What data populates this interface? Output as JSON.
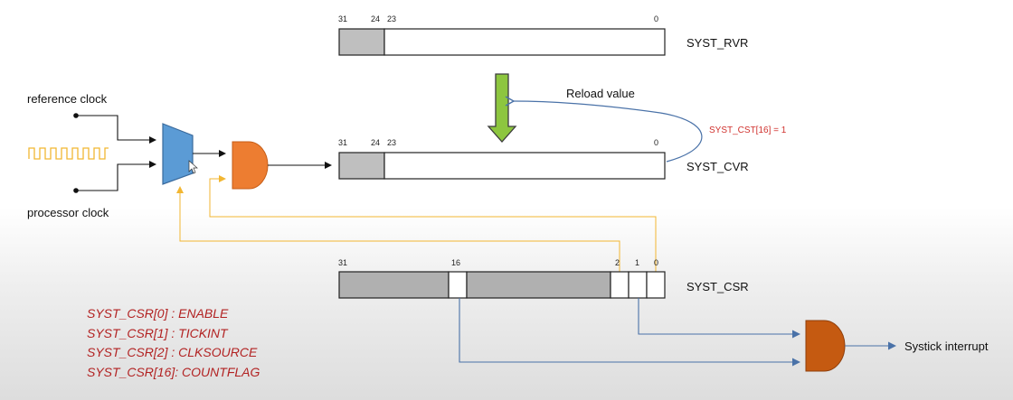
{
  "registers": {
    "rvr": {
      "name": "SYST_RVR",
      "bit_31": "31",
      "bit_24": "24",
      "bit_23": "23",
      "bit_0": "0"
    },
    "cvr": {
      "name": "SYST_CVR",
      "bit_31": "31",
      "bit_24": "24",
      "bit_23": "23",
      "bit_0": "0"
    },
    "csr": {
      "name": "SYST_CSR",
      "bit_31": "31",
      "bit_16": "16",
      "bit_2": "2",
      "bit_1": "1",
      "bit_0": "0"
    }
  },
  "inputs": {
    "reference_clock": "reference clock",
    "processor_clock": "processor clock"
  },
  "labels": {
    "reload_value": "Reload value",
    "countflag_condition": "SYST_CST[16] = 1",
    "systick_interrupt": "Systick interrupt"
  },
  "legend": [
    "SYST_CSR[0] : ENABLE",
    "SYST_CSR[1] : TICKINT",
    "SYST_CSR[2] : CLKSOURCE",
    "SYST_CSR[16]: COUNTFLAG"
  ],
  "colors": {
    "mux": "#5b9bd5",
    "and_gate_clock": "#ed7d31",
    "and_gate_interrupt": "#c55a11",
    "reload_arrow": "#8dc63f",
    "feedback_line": "#f2c24a",
    "signal_line": "#4a72a8",
    "reserved_field": "#bfbfbf",
    "countflag_text": "#d0312d",
    "legend_text": "#b22222"
  },
  "icons": {
    "clock_waveform": "square-wave-icon",
    "mouse_pointer": "cursor-arrow-icon"
  }
}
